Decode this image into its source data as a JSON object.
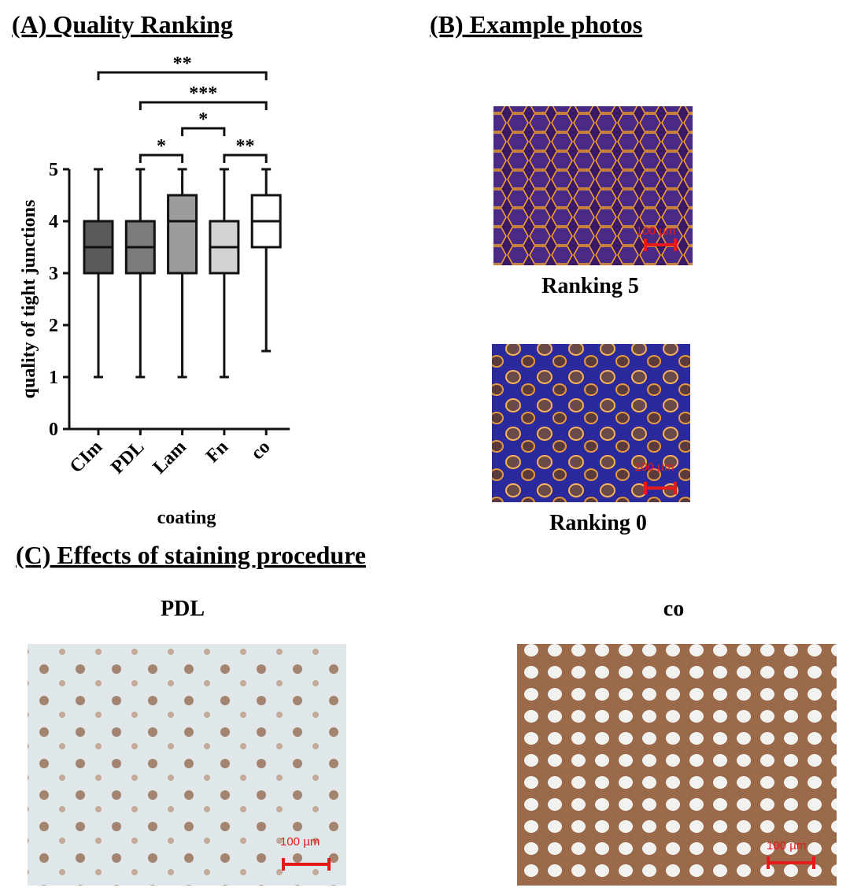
{
  "chart_data": {
    "type": "box",
    "title": "(A) Quality Ranking",
    "x_label": "coating",
    "y_label": "quality of tight junctions",
    "categories": [
      "CIm",
      "PDL",
      "Lam",
      "Fn",
      "co"
    ],
    "boxes": [
      {
        "min": 1,
        "q1": 3,
        "median": 3.5,
        "q3": 4,
        "max": 5,
        "color": "#5a5a5a"
      },
      {
        "min": 1,
        "q1": 3,
        "median": 3.5,
        "q3": 4,
        "max": 5,
        "color": "#7b7b7b"
      },
      {
        "min": 1,
        "q1": 3,
        "median": 4,
        "q3": 4.5,
        "max": 5,
        "color": "#9c9c9c"
      },
      {
        "min": 1,
        "q1": 3,
        "median": 3.5,
        "q3": 4,
        "max": 5,
        "color": "#d2d2d2"
      },
      {
        "min": 1.5,
        "q1": 3.5,
        "median": 4,
        "q3": 4.5,
        "max": 5,
        "color": "#ffffff"
      }
    ],
    "ylim": [
      0,
      5
    ],
    "yticks": [
      0,
      1,
      2,
      3,
      4,
      5
    ],
    "significance": [
      {
        "between": [
          "CIm",
          "co"
        ],
        "label": "**"
      },
      {
        "between": [
          "PDL",
          "co"
        ],
        "label": "***"
      },
      {
        "between": [
          "Lam",
          "Fn"
        ],
        "label": "*"
      },
      {
        "between": [
          "PDL",
          "Lam"
        ],
        "label": "*"
      },
      {
        "between": [
          "Fn",
          "co"
        ],
        "label": "**"
      }
    ]
  },
  "panel_b": {
    "title": "(B) Example photos",
    "photos": [
      {
        "caption": "Ranking 5",
        "scale_bar": "100 µm"
      },
      {
        "caption": "Ranking 0",
        "scale_bar": "100 µm"
      }
    ]
  },
  "panel_c": {
    "title": "(C) Effects of staining procedure",
    "photos": [
      {
        "caption": "PDL",
        "scale_bar": "100 µm"
      },
      {
        "caption": "co",
        "scale_bar": "100 µm"
      }
    ]
  }
}
